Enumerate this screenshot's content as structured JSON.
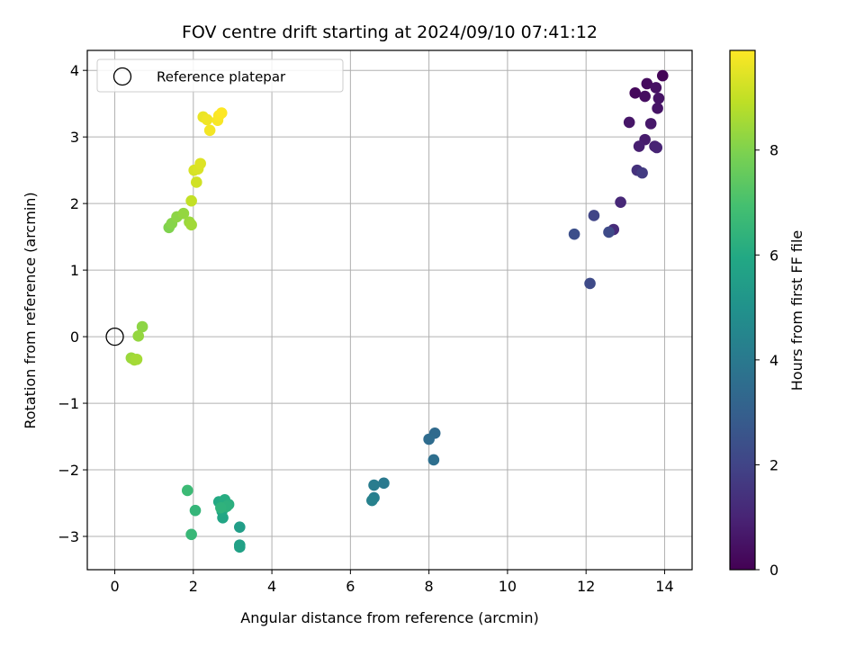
{
  "chart_data": {
    "type": "scatter",
    "title": "FOV centre drift starting at 2024/09/10 07:41:12",
    "xlabel": "Angular distance from reference (arcmin)",
    "ylabel": "Rotation from reference (arcmin)",
    "xlim": [
      -0.7,
      14.7
    ],
    "ylim": [
      -3.5,
      4.3
    ],
    "x_ticks": [
      0,
      2,
      4,
      6,
      8,
      10,
      12,
      14
    ],
    "y_ticks": [
      -3,
      -2,
      -1,
      0,
      1,
      2,
      3,
      4
    ],
    "grid": true,
    "legend": {
      "placement": "upper-left",
      "entries": [
        {
          "label": "Reference platepar",
          "marker": "open-circle"
        }
      ]
    },
    "reference_point": {
      "x": 0,
      "y": 0
    },
    "colorbar": {
      "label": "Hours from first FF file",
      "range": [
        0,
        9.9
      ],
      "ticks": [
        0,
        2,
        4,
        6,
        8
      ],
      "colormap": "viridis"
    },
    "points": [
      {
        "x": 13.95,
        "y": 3.92,
        "h": 0.1
      },
      {
        "x": 13.25,
        "y": 3.66,
        "h": 0.2
      },
      {
        "x": 13.55,
        "y": 3.8,
        "h": 0.3
      },
      {
        "x": 13.5,
        "y": 3.61,
        "h": 0.35
      },
      {
        "x": 13.78,
        "y": 3.74,
        "h": 0.45
      },
      {
        "x": 13.85,
        "y": 3.58,
        "h": 0.5
      },
      {
        "x": 13.82,
        "y": 3.43,
        "h": 0.55
      },
      {
        "x": 13.1,
        "y": 3.22,
        "h": 0.6
      },
      {
        "x": 13.65,
        "y": 3.2,
        "h": 0.65
      },
      {
        "x": 13.5,
        "y": 2.96,
        "h": 0.75
      },
      {
        "x": 13.35,
        "y": 2.86,
        "h": 0.85
      },
      {
        "x": 13.75,
        "y": 2.86,
        "h": 0.95
      },
      {
        "x": 13.8,
        "y": 2.84,
        "h": 1.0
      },
      {
        "x": 12.88,
        "y": 2.02,
        "h": 1.1
      },
      {
        "x": 12.7,
        "y": 1.61,
        "h": 1.2
      },
      {
        "x": 13.3,
        "y": 2.5,
        "h": 1.4
      },
      {
        "x": 13.43,
        "y": 2.46,
        "h": 1.7
      },
      {
        "x": 12.2,
        "y": 1.82,
        "h": 2.0
      },
      {
        "x": 12.58,
        "y": 1.57,
        "h": 2.2
      },
      {
        "x": 11.7,
        "y": 1.54,
        "h": 2.4
      },
      {
        "x": 12.1,
        "y": 0.8,
        "h": 2.2
      },
      {
        "x": 8.15,
        "y": -1.45,
        "h": 3.4
      },
      {
        "x": 8.0,
        "y": -1.54,
        "h": 3.5
      },
      {
        "x": 8.12,
        "y": -1.85,
        "h": 3.6
      },
      {
        "x": 6.85,
        "y": -2.2,
        "h": 4.0
      },
      {
        "x": 6.6,
        "y": -2.23,
        "h": 4.1
      },
      {
        "x": 6.6,
        "y": -2.42,
        "h": 4.2
      },
      {
        "x": 6.55,
        "y": -2.46,
        "h": 4.3
      },
      {
        "x": 3.18,
        "y": -2.86,
        "h": 5.5
      },
      {
        "x": 3.18,
        "y": -3.13,
        "h": 5.6
      },
      {
        "x": 3.18,
        "y": -3.16,
        "h": 5.65
      },
      {
        "x": 2.75,
        "y": -2.72,
        "h": 5.8
      },
      {
        "x": 2.73,
        "y": -2.62,
        "h": 5.9
      },
      {
        "x": 2.65,
        "y": -2.48,
        "h": 6.0
      },
      {
        "x": 2.8,
        "y": -2.45,
        "h": 6.1
      },
      {
        "x": 2.9,
        "y": -2.52,
        "h": 6.2
      },
      {
        "x": 2.85,
        "y": -2.55,
        "h": 6.3
      },
      {
        "x": 2.7,
        "y": -2.57,
        "h": 6.35
      },
      {
        "x": 2.05,
        "y": -2.61,
        "h": 6.5
      },
      {
        "x": 1.95,
        "y": -2.97,
        "h": 6.6
      },
      {
        "x": 1.85,
        "y": -2.31,
        "h": 6.7
      },
      {
        "x": 0.7,
        "y": 0.15,
        "h": 8.2
      },
      {
        "x": 0.6,
        "y": 0.01,
        "h": 8.3
      },
      {
        "x": 0.42,
        "y": -0.32,
        "h": 8.4
      },
      {
        "x": 0.5,
        "y": -0.35,
        "h": 8.5
      },
      {
        "x": 0.56,
        "y": -0.34,
        "h": 8.55
      },
      {
        "x": 1.38,
        "y": 1.64,
        "h": 8.0
      },
      {
        "x": 1.45,
        "y": 1.7,
        "h": 8.1
      },
      {
        "x": 1.58,
        "y": 1.8,
        "h": 8.2
      },
      {
        "x": 1.75,
        "y": 1.85,
        "h": 8.3
      },
      {
        "x": 1.9,
        "y": 1.72,
        "h": 8.4
      },
      {
        "x": 1.95,
        "y": 1.68,
        "h": 8.5
      },
      {
        "x": 1.95,
        "y": 2.04,
        "h": 9.0
      },
      {
        "x": 2.08,
        "y": 2.32,
        "h": 9.2
      },
      {
        "x": 2.02,
        "y": 2.5,
        "h": 9.3
      },
      {
        "x": 2.12,
        "y": 2.52,
        "h": 9.35
      },
      {
        "x": 2.18,
        "y": 2.6,
        "h": 9.4
      },
      {
        "x": 2.25,
        "y": 3.3,
        "h": 9.6
      },
      {
        "x": 2.35,
        "y": 3.26,
        "h": 9.7
      },
      {
        "x": 2.42,
        "y": 3.1,
        "h": 9.75
      },
      {
        "x": 2.62,
        "y": 3.25,
        "h": 9.8
      },
      {
        "x": 2.65,
        "y": 3.32,
        "h": 9.85
      },
      {
        "x": 2.72,
        "y": 3.36,
        "h": 9.9
      }
    ]
  }
}
